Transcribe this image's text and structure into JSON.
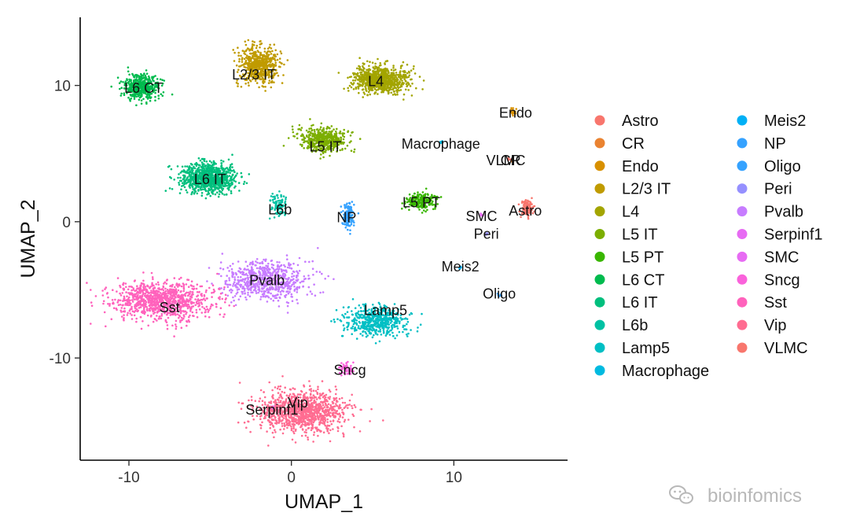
{
  "chart_data": {
    "type": "scatter",
    "title": "",
    "xlabel": "UMAP_1",
    "ylabel": "UMAP_2",
    "xlim": [
      -13,
      17
    ],
    "ylim": [
      -17.5,
      15
    ],
    "xticks": [
      -10,
      0,
      10
    ],
    "xtick_labels": [
      "-10",
      "0",
      "10"
    ],
    "yticks": [
      -10,
      0,
      10
    ],
    "ytick_labels": [
      "-10",
      "0",
      "10"
    ],
    "grid": false,
    "legend_position": "right",
    "legend_columns": 2,
    "series": [
      {
        "name": "Astro",
        "color": "#F8766D",
        "label": "Astro",
        "label_x": 14.4,
        "label_y": 0.8,
        "center_x": 14.5,
        "center_y": 1.0,
        "spread_x": 0.35,
        "spread_y": 0.55,
        "n": 120
      },
      {
        "name": "CR",
        "color": "#EA8331",
        "label": "CR",
        "label_x": 13.5,
        "label_y": 4.5,
        "center_x": 13.6,
        "center_y": 4.5,
        "spread_x": 0.1,
        "spread_y": 0.1,
        "n": 6
      },
      {
        "name": "Endo",
        "color": "#D89000",
        "label": "Endo",
        "label_x": 13.8,
        "label_y": 8.0,
        "center_x": 13.6,
        "center_y": 8.1,
        "spread_x": 0.15,
        "spread_y": 0.25,
        "n": 20
      },
      {
        "name": "L2/3 IT",
        "color": "#C09B00",
        "label": "L2/3 IT",
        "label_x": -2.3,
        "label_y": 10.8,
        "center_x": -2.0,
        "center_y": 11.5,
        "spread_x": 1.1,
        "spread_y": 1.2,
        "n": 600
      },
      {
        "name": "L4",
        "color": "#A3A500",
        "label": "L4",
        "label_x": 5.2,
        "label_y": 10.3,
        "center_x": 5.5,
        "center_y": 10.4,
        "spread_x": 1.5,
        "spread_y": 0.9,
        "n": 900
      },
      {
        "name": "L5 IT",
        "color": "#7CAE00",
        "label": "L5 IT",
        "label_x": 2.1,
        "label_y": 5.5,
        "center_x": 2.0,
        "center_y": 6.0,
        "spread_x": 1.3,
        "spread_y": 0.8,
        "n": 500
      },
      {
        "name": "L5 PT",
        "color": "#39B600",
        "label": "L5 PT",
        "label_x": 8.0,
        "label_y": 1.4,
        "center_x": 8.0,
        "center_y": 1.5,
        "spread_x": 0.8,
        "spread_y": 0.5,
        "n": 220
      },
      {
        "name": "L6 CT",
        "color": "#00BB4E",
        "label": "L6 CT",
        "label_x": -9.1,
        "label_y": 9.8,
        "center_x": -9.2,
        "center_y": 9.9,
        "spread_x": 1.0,
        "spread_y": 0.8,
        "n": 450
      },
      {
        "name": "L6 IT",
        "color": "#00BF7D",
        "label": "L6 IT",
        "label_x": -5.0,
        "label_y": 3.1,
        "center_x": -5.1,
        "center_y": 3.2,
        "spread_x": 1.6,
        "spread_y": 1.0,
        "n": 900
      },
      {
        "name": "L6b",
        "color": "#00C1A3",
        "label": "L6b",
        "label_x": -0.7,
        "label_y": 0.9,
        "center_x": -0.8,
        "center_y": 1.3,
        "spread_x": 0.5,
        "spread_y": 0.7,
        "n": 90
      },
      {
        "name": "Lamp5",
        "color": "#00BFC4",
        "label": "Lamp5",
        "label_x": 5.8,
        "label_y": -6.5,
        "center_x": 5.2,
        "center_y": -7.3,
        "spread_x": 1.7,
        "spread_y": 1.0,
        "n": 550
      },
      {
        "name": "Macrophage",
        "color": "#00BAE0",
        "label": "Macrophage",
        "label_x": 9.2,
        "label_y": 5.7,
        "center_x": 9.2,
        "center_y": 5.8,
        "spread_x": 0.1,
        "spread_y": 0.1,
        "n": 6
      },
      {
        "name": "Meis2",
        "color": "#00B0F6",
        "label": "Meis2",
        "label_x": 10.4,
        "label_y": -3.3,
        "center_x": 10.4,
        "center_y": -3.4,
        "spread_x": 0.1,
        "spread_y": 0.1,
        "n": 6
      },
      {
        "name": "NP",
        "color": "#35A2FF",
        "label": "NP",
        "label_x": 3.4,
        "label_y": 0.3,
        "center_x": 3.5,
        "center_y": 0.5,
        "spread_x": 0.3,
        "spread_y": 0.8,
        "n": 150
      },
      {
        "name": "Oligo",
        "color": "#35A2FF",
        "label": "Oligo",
        "label_x": 12.8,
        "label_y": -5.3,
        "center_x": 12.8,
        "center_y": -5.4,
        "spread_x": 0.1,
        "spread_y": 0.1,
        "n": 6
      },
      {
        "name": "Peri",
        "color": "#9590FF",
        "label": "Peri",
        "label_x": 12.0,
        "label_y": -0.9,
        "center_x": 12.0,
        "center_y": -0.9,
        "spread_x": 0.1,
        "spread_y": 0.1,
        "n": 6
      },
      {
        "name": "Pvalb",
        "color": "#C77CFF",
        "label": "Pvalb",
        "label_x": -1.5,
        "label_y": -4.3,
        "center_x": -1.5,
        "center_y": -4.3,
        "spread_x": 2.2,
        "spread_y": 1.3,
        "n": 700
      },
      {
        "name": "Serpinf1",
        "color": "#E76BF3",
        "label": "Serpinf1",
        "label_x": -1.2,
        "label_y": -13.8,
        "center_x": -1.2,
        "center_y": -13.7,
        "spread_x": 0.2,
        "spread_y": 0.2,
        "n": 10
      },
      {
        "name": "SMC",
        "color": "#E76BF3",
        "label": "SMC",
        "label_x": 11.7,
        "label_y": 0.4,
        "center_x": 11.7,
        "center_y": 0.5,
        "spread_x": 0.1,
        "spread_y": 0.1,
        "n": 6
      },
      {
        "name": "Sncg",
        "color": "#FA62DB",
        "label": "Sncg",
        "label_x": 3.6,
        "label_y": -10.9,
        "center_x": 3.4,
        "center_y": -10.8,
        "spread_x": 0.4,
        "spread_y": 0.4,
        "n": 60
      },
      {
        "name": "Sst",
        "color": "#FF62BC",
        "label": "Sst",
        "label_x": -7.5,
        "label_y": -6.3,
        "center_x": -8.0,
        "center_y": -5.8,
        "spread_x": 2.7,
        "spread_y": 1.3,
        "n": 1000
      },
      {
        "name": "Vip",
        "color": "#FF6C91",
        "label": "Vip",
        "label_x": 0.4,
        "label_y": -13.3,
        "center_x": 0.7,
        "center_y": -13.9,
        "spread_x": 2.5,
        "spread_y": 1.4,
        "n": 1100
      },
      {
        "name": "VLMC",
        "color": "#F8766D",
        "label": "VLMC",
        "label_x": 13.2,
        "label_y": 4.5,
        "center_x": 13.4,
        "center_y": 4.6,
        "spread_x": 0.1,
        "spread_y": 0.1,
        "n": 6
      }
    ]
  },
  "watermark": "bioinfomics"
}
